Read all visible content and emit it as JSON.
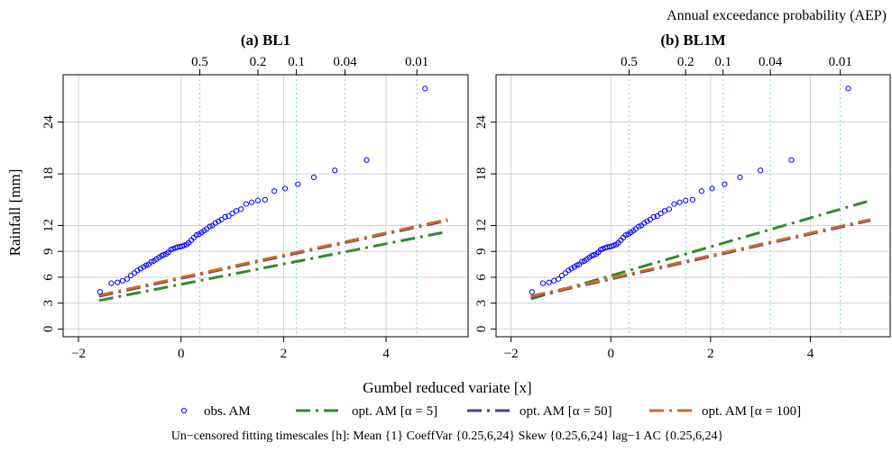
{
  "figure": {
    "top_axis_title": "Annual exceedance probability (AEP)",
    "x_axis_title": "Gumbel reduced variate [x]",
    "y_axis_title": "Rainfall [mm]",
    "footnote": "Un−censored fitting timescales [h]:  Mean {1} CoeffVar {0.25,6,24} Skew {0.25,6,24} lag−1 AC {0.25,6,24}",
    "legend": [
      {
        "label": "obs. AM",
        "kind": "points",
        "color": "#0000ff"
      },
      {
        "label": "opt. AM [α = 5]",
        "kind": "dashdot",
        "color": "#2e8b2e"
      },
      {
        "label": "opt. AM [α = 50]",
        "kind": "dashdot",
        "color": "#483d8b"
      },
      {
        "label": "opt. AM [α = 100]",
        "kind": "dashdot",
        "color": "#d2691e"
      }
    ],
    "colors": {
      "observed": "#0000ff",
      "alpha5": "#2e8b2e",
      "alpha50": "#483d8b",
      "alpha100": "#d2691e",
      "aep_grid": "#87ceeb",
      "grid": "#d3d3d3"
    }
  },
  "chart_data": [
    {
      "type": "scatter",
      "title": "(a) BL1",
      "xlabel": "Gumbel reduced variate [x]",
      "ylabel": "Rainfall [mm]",
      "top_axis_label": "Annual exceedance probability (AEP)",
      "xlim": [
        -2.3,
        5.6
      ],
      "ylim": [
        -0.9,
        29.5
      ],
      "x_ticks": [
        -2,
        0,
        2,
        4
      ],
      "x_tick_labels": [
        "−2",
        "0",
        "2",
        "4"
      ],
      "y_ticks": [
        0,
        3,
        6,
        9,
        12,
        18,
        24
      ],
      "y_tick_labels": [
        "0",
        "3",
        "6",
        "9",
        "12",
        "18",
        "24"
      ],
      "aep_ticks": [
        0.5,
        0.2,
        0.1,
        0.04,
        0.01
      ],
      "aep_tick_labels": [
        "0.5",
        "0.2",
        "0.1",
        "0.04",
        "0.01"
      ],
      "grid": true,
      "observed_points": [
        [
          -1.58,
          4.3
        ],
        [
          -1.36,
          5.3
        ],
        [
          -1.24,
          5.4
        ],
        [
          -1.14,
          5.6
        ],
        [
          -1.05,
          5.8
        ],
        [
          -0.98,
          6.2
        ],
        [
          -0.91,
          6.5
        ],
        [
          -0.85,
          6.8
        ],
        [
          -0.79,
          7.0
        ],
        [
          -0.73,
          7.2
        ],
        [
          -0.68,
          7.4
        ],
        [
          -0.63,
          7.5
        ],
        [
          -0.58,
          7.8
        ],
        [
          -0.53,
          7.9
        ],
        [
          -0.48,
          8.1
        ],
        [
          -0.43,
          8.3
        ],
        [
          -0.38,
          8.5
        ],
        [
          -0.34,
          8.6
        ],
        [
          -0.29,
          8.7
        ],
        [
          -0.25,
          8.9
        ],
        [
          -0.2,
          9.2
        ],
        [
          -0.16,
          9.3
        ],
        [
          -0.11,
          9.4
        ],
        [
          -0.07,
          9.5
        ],
        [
          -0.02,
          9.55
        ],
        [
          0.02,
          9.6
        ],
        [
          0.06,
          9.7
        ],
        [
          0.11,
          9.8
        ],
        [
          0.15,
          10.0
        ],
        [
          0.2,
          10.3
        ],
        [
          0.25,
          10.6
        ],
        [
          0.3,
          10.9
        ],
        [
          0.35,
          11.0
        ],
        [
          0.4,
          11.2
        ],
        [
          0.45,
          11.4
        ],
        [
          0.5,
          11.6
        ],
        [
          0.56,
          11.9
        ],
        [
          0.61,
          12.0
        ],
        [
          0.67,
          12.3
        ],
        [
          0.73,
          12.5
        ],
        [
          0.79,
          12.7
        ],
        [
          0.86,
          13.0
        ],
        [
          0.93,
          13.1
        ],
        [
          1.0,
          13.4
        ],
        [
          1.08,
          13.7
        ],
        [
          1.17,
          13.9
        ],
        [
          1.27,
          14.5
        ],
        [
          1.38,
          14.7
        ],
        [
          1.5,
          14.9
        ],
        [
          1.64,
          15.0
        ],
        [
          1.82,
          16.0
        ],
        [
          2.03,
          16.3
        ],
        [
          2.28,
          16.8
        ],
        [
          2.59,
          17.6
        ],
        [
          3.0,
          18.4
        ],
        [
          3.62,
          19.6
        ],
        [
          4.76,
          27.9
        ]
      ],
      "series": [
        {
          "name": "opt. AM [α = 5]",
          "x": [
            -1.6,
            5.2
          ],
          "y": [
            3.3,
            11.3
          ]
        },
        {
          "name": "opt. AM [α = 50]",
          "x": [
            -1.6,
            5.2
          ],
          "y": [
            3.8,
            12.6
          ]
        },
        {
          "name": "opt. AM [α = 100]",
          "x": [
            -1.6,
            5.2
          ],
          "y": [
            3.9,
            12.7
          ]
        }
      ]
    },
    {
      "type": "scatter",
      "title": "(b) BL1M",
      "xlabel": "Gumbel reduced variate [x]",
      "ylabel": "Rainfall [mm]",
      "top_axis_label": "Annual exceedance probability (AEP)",
      "xlim": [
        -2.3,
        5.6
      ],
      "ylim": [
        -0.9,
        29.5
      ],
      "x_ticks": [
        -2,
        0,
        2,
        4
      ],
      "x_tick_labels": [
        "−2",
        "0",
        "2",
        "4"
      ],
      "y_ticks": [
        0,
        3,
        6,
        9,
        12,
        18,
        24
      ],
      "y_tick_labels": [
        "0",
        "3",
        "6",
        "9",
        "12",
        "18",
        "24"
      ],
      "aep_ticks": [
        0.5,
        0.2,
        0.1,
        0.04,
        0.01
      ],
      "aep_tick_labels": [
        "0.5",
        "0.2",
        "0.1",
        "0.04",
        "0.01"
      ],
      "grid": true,
      "observed_points": [
        [
          -1.58,
          4.3
        ],
        [
          -1.36,
          5.3
        ],
        [
          -1.24,
          5.4
        ],
        [
          -1.14,
          5.6
        ],
        [
          -1.05,
          5.8
        ],
        [
          -0.98,
          6.2
        ],
        [
          -0.91,
          6.5
        ],
        [
          -0.85,
          6.8
        ],
        [
          -0.79,
          7.0
        ],
        [
          -0.73,
          7.2
        ],
        [
          -0.68,
          7.4
        ],
        [
          -0.63,
          7.5
        ],
        [
          -0.58,
          7.8
        ],
        [
          -0.53,
          7.9
        ],
        [
          -0.48,
          8.1
        ],
        [
          -0.43,
          8.3
        ],
        [
          -0.38,
          8.5
        ],
        [
          -0.34,
          8.6
        ],
        [
          -0.29,
          8.7
        ],
        [
          -0.25,
          8.9
        ],
        [
          -0.2,
          9.2
        ],
        [
          -0.16,
          9.3
        ],
        [
          -0.11,
          9.4
        ],
        [
          -0.07,
          9.5
        ],
        [
          -0.02,
          9.55
        ],
        [
          0.02,
          9.6
        ],
        [
          0.06,
          9.7
        ],
        [
          0.11,
          9.8
        ],
        [
          0.15,
          10.0
        ],
        [
          0.2,
          10.3
        ],
        [
          0.25,
          10.6
        ],
        [
          0.3,
          10.9
        ],
        [
          0.35,
          11.0
        ],
        [
          0.4,
          11.2
        ],
        [
          0.45,
          11.4
        ],
        [
          0.5,
          11.6
        ],
        [
          0.56,
          11.9
        ],
        [
          0.61,
          12.0
        ],
        [
          0.67,
          12.3
        ],
        [
          0.73,
          12.5
        ],
        [
          0.79,
          12.7
        ],
        [
          0.86,
          13.0
        ],
        [
          0.93,
          13.1
        ],
        [
          1.0,
          13.4
        ],
        [
          1.08,
          13.7
        ],
        [
          1.17,
          13.9
        ],
        [
          1.27,
          14.5
        ],
        [
          1.38,
          14.7
        ],
        [
          1.5,
          14.9
        ],
        [
          1.64,
          15.0
        ],
        [
          1.82,
          16.0
        ],
        [
          2.03,
          16.3
        ],
        [
          2.28,
          16.8
        ],
        [
          2.59,
          17.6
        ],
        [
          3.0,
          18.4
        ],
        [
          3.62,
          19.6
        ],
        [
          4.76,
          27.9
        ]
      ],
      "series": [
        {
          "name": "opt. AM [α = 5]",
          "x": [
            -1.6,
            5.2
          ],
          "y": [
            3.5,
            14.9
          ]
        },
        {
          "name": "opt. AM [α = 50]",
          "x": [
            -1.6,
            5.2
          ],
          "y": [
            3.7,
            12.6
          ]
        },
        {
          "name": "opt. AM [α = 100]",
          "x": [
            -1.6,
            5.2
          ],
          "y": [
            3.8,
            12.7
          ]
        }
      ]
    }
  ]
}
